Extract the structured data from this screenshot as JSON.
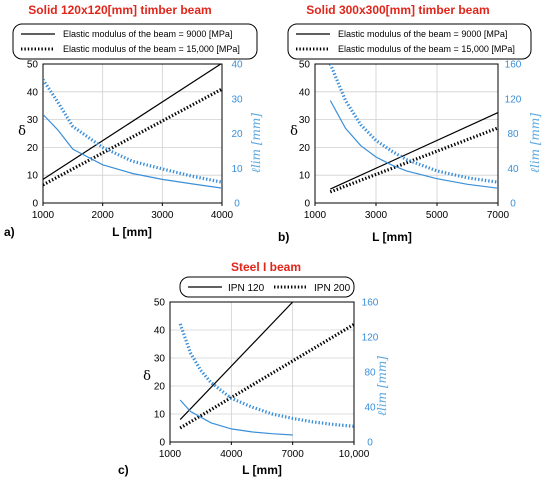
{
  "chart_data": [
    {
      "type": "line",
      "panel_label": "a)",
      "title": "Solid 120x120[mm] timber beam",
      "xlabel": "L [mm]",
      "ylabel": "δ",
      "y2label": "ℓlim [mm]",
      "xlim": [
        1000,
        4000
      ],
      "ylim": [
        0,
        50
      ],
      "y2lim": [
        0,
        40
      ],
      "xticks": [
        "1000",
        "2000",
        "3000",
        "4000"
      ],
      "yticks": [
        "0",
        "10",
        "20",
        "30",
        "40",
        "50"
      ],
      "y2ticks": [
        "0",
        "10",
        "20",
        "30",
        "40"
      ],
      "grid": true,
      "legend": [
        "Elastic modulus of the beam = 9000 [MPa]",
        "Elastic modulus of the beam = 15,000 [MPa]"
      ],
      "series": [
        {
          "name": "Elastic modulus of the beam = 9000 [MPa]",
          "axis": "left",
          "color": "#000000",
          "style": "solid",
          "x": [
            1000,
            4000
          ],
          "y": [
            8.5,
            50.3
          ]
        },
        {
          "name": "Elastic modulus of the beam = 15,000 [MPa]",
          "axis": "left",
          "color": "#000000",
          "style": "dotted",
          "x": [
            1000,
            4000
          ],
          "y": [
            6.5,
            41
          ]
        },
        {
          "name": "Elastic modulus of the beam = 9000 [MPa]",
          "axis": "right",
          "color": "#3a8fd9",
          "style": "solid",
          "x": [
            1000,
            1250,
            1500,
            2000,
            2500,
            3000,
            3500,
            4000
          ],
          "y": [
            25.5,
            21,
            15.5,
            11,
            8.5,
            6.8,
            5.5,
            4.3
          ]
        },
        {
          "name": "Elastic modulus of the beam = 15,000 [MPa]",
          "axis": "right",
          "color": "#3a8fd9",
          "style": "dotted",
          "x": [
            1000,
            1250,
            1500,
            2000,
            2500,
            3000,
            3500,
            4000
          ],
          "y": [
            35.5,
            29,
            22,
            16,
            12,
            9.8,
            7.7,
            6
          ]
        }
      ]
    },
    {
      "type": "line",
      "panel_label": "b)",
      "title": "Solid 300x300[mm] timber beam",
      "xlabel": "L [mm]",
      "ylabel": "δ",
      "y2label": "ℓlim [mm]",
      "xlim": [
        1000,
        7000
      ],
      "ylim": [
        0,
        50
      ],
      "y2lim": [
        0,
        160
      ],
      "xticks": [
        "1000",
        "3000",
        "5000",
        "7000"
      ],
      "yticks": [
        "0",
        "10",
        "20",
        "30",
        "40",
        "50"
      ],
      "y2ticks": [
        "0",
        "40",
        "80",
        "120",
        "160"
      ],
      "grid": true,
      "legend": [
        "Elastic modulus of the beam = 9000 [MPa]",
        "Elastic modulus of the beam = 15,000 [MPa]"
      ],
      "series": [
        {
          "name": "Elastic modulus of the beam = 9000 [MPa]",
          "axis": "left",
          "color": "#000000",
          "style": "solid",
          "x": [
            1500,
            7000
          ],
          "y": [
            5,
            32.5
          ]
        },
        {
          "name": "Elastic modulus of the beam = 15,000 [MPa]",
          "axis": "left",
          "color": "#000000",
          "style": "dotted",
          "x": [
            1500,
            7000
          ],
          "y": [
            4,
            27
          ]
        },
        {
          "name": "Elastic modulus of the beam = 9000 [MPa]",
          "axis": "right",
          "color": "#3a8fd9",
          "style": "solid",
          "x": [
            1500,
            2000,
            2500,
            3000,
            3500,
            4000,
            5000,
            6000,
            7000
          ],
          "y": [
            118,
            86,
            66,
            53,
            44,
            37,
            28,
            21.5,
            17
          ]
        },
        {
          "name": "Elastic modulus of the beam = 15,000 [MPa]",
          "axis": "right",
          "color": "#3a8fd9",
          "style": "dotted",
          "x": [
            1500,
            2000,
            2500,
            3000,
            3500,
            4000,
            5000,
            6000,
            7000
          ],
          "y": [
            160,
            118,
            90,
            72,
            60,
            50,
            37,
            29,
            24
          ]
        }
      ]
    },
    {
      "type": "line",
      "panel_label": "c)",
      "title": "Steel I beam",
      "xlabel": "L [mm]",
      "ylabel": "δ",
      "y2label": "ℓlim [mm]",
      "xlim": [
        1000,
        10000
      ],
      "ylim": [
        0,
        50
      ],
      "y2lim": [
        0,
        160
      ],
      "xticks": [
        "1000",
        "4000",
        "7000",
        "10,000"
      ],
      "yticks": [
        "0",
        "10",
        "20",
        "30",
        "40",
        "50"
      ],
      "y2ticks": [
        "0",
        "40",
        "80",
        "120",
        "160"
      ],
      "grid": true,
      "legend": [
        "IPN 120",
        "IPN 200"
      ],
      "series": [
        {
          "name": "IPN 120",
          "axis": "left",
          "color": "#000000",
          "style": "solid",
          "x": [
            1500,
            7000
          ],
          "y": [
            8,
            50
          ]
        },
        {
          "name": "IPN 200",
          "axis": "left",
          "color": "#000000",
          "style": "dotted",
          "x": [
            1500,
            10000
          ],
          "y": [
            5,
            42
          ]
        },
        {
          "name": "IPN 120",
          "axis": "right",
          "color": "#3a8fd9",
          "style": "solid",
          "x": [
            1500,
            2000,
            3000,
            4000,
            5000,
            6000,
            7000
          ],
          "y": [
            48,
            35,
            22,
            15,
            11.5,
            9.5,
            8
          ]
        },
        {
          "name": "IPN 200",
          "axis": "right",
          "color": "#3a8fd9",
          "style": "dotted",
          "x": [
            1500,
            2000,
            2500,
            3000,
            4000,
            5000,
            6000,
            7000,
            8000,
            9000,
            10000
          ],
          "y": [
            135,
            102,
            82,
            68,
            50,
            40,
            32,
            27,
            23,
            20,
            18
          ]
        }
      ]
    }
  ]
}
